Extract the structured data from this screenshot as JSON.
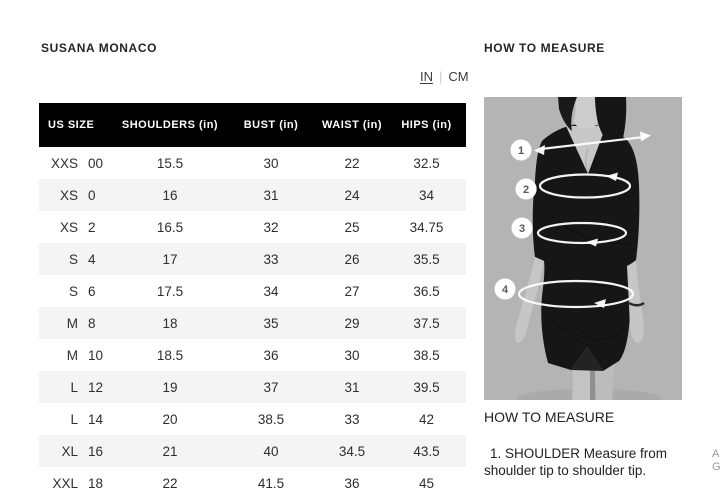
{
  "brand": {
    "name": "SUSANA MONACO"
  },
  "unit_toggle": {
    "options": [
      {
        "label": "IN",
        "active": true
      },
      {
        "label": "CM",
        "active": false
      }
    ],
    "separator": "|"
  },
  "size_chart": {
    "headers": [
      "US SIZE",
      "SHOULDERS (in)",
      "BUST (in)",
      "WAIST (in)",
      "HIPS (in)"
    ],
    "rows": [
      [
        "XXS",
        "00",
        "15.5",
        "30",
        "22",
        "32.5"
      ],
      [
        "XS",
        "0",
        "16",
        "31",
        "24",
        "34"
      ],
      [
        "XS",
        "2",
        "16.5",
        "32",
        "25",
        "34.75"
      ],
      [
        "S",
        "4",
        "17",
        "33",
        "26",
        "35.5"
      ],
      [
        "S",
        "6",
        "17.5",
        "34",
        "27",
        "36.5"
      ],
      [
        "M",
        "8",
        "18",
        "35",
        "29",
        "37.5"
      ],
      [
        "M",
        "10",
        "18.5",
        "36",
        "30",
        "38.5"
      ],
      [
        "L",
        "12",
        "19",
        "37",
        "31",
        "39.5"
      ],
      [
        "L",
        "14",
        "20",
        "38.5",
        "33",
        "42"
      ],
      [
        "XL",
        "16",
        "21",
        "40",
        "34.5",
        "43.5"
      ],
      [
        "XXL",
        "18",
        "22",
        "41.5",
        "36",
        "45"
      ]
    ]
  },
  "measure_guide": {
    "panel_title": "HOW TO MEASURE",
    "section_title": "HOW TO MEASURE",
    "instruction": {
      "line1": "1. SHOULDER Measure from",
      "line2": "shoulder tip to shoulder tip."
    },
    "badges": [
      "1",
      "2",
      "3",
      "4"
    ]
  },
  "edge_text": {
    "line1": "A",
    "line2": "G"
  },
  "colors": {
    "header_bg": "#000000",
    "header_text": "#ffffff",
    "row_alt_bg": "#f4f4f4",
    "text": "#2e2e2e",
    "photo_bg": "#b4b4b4",
    "overlay": "#ffffff"
  }
}
